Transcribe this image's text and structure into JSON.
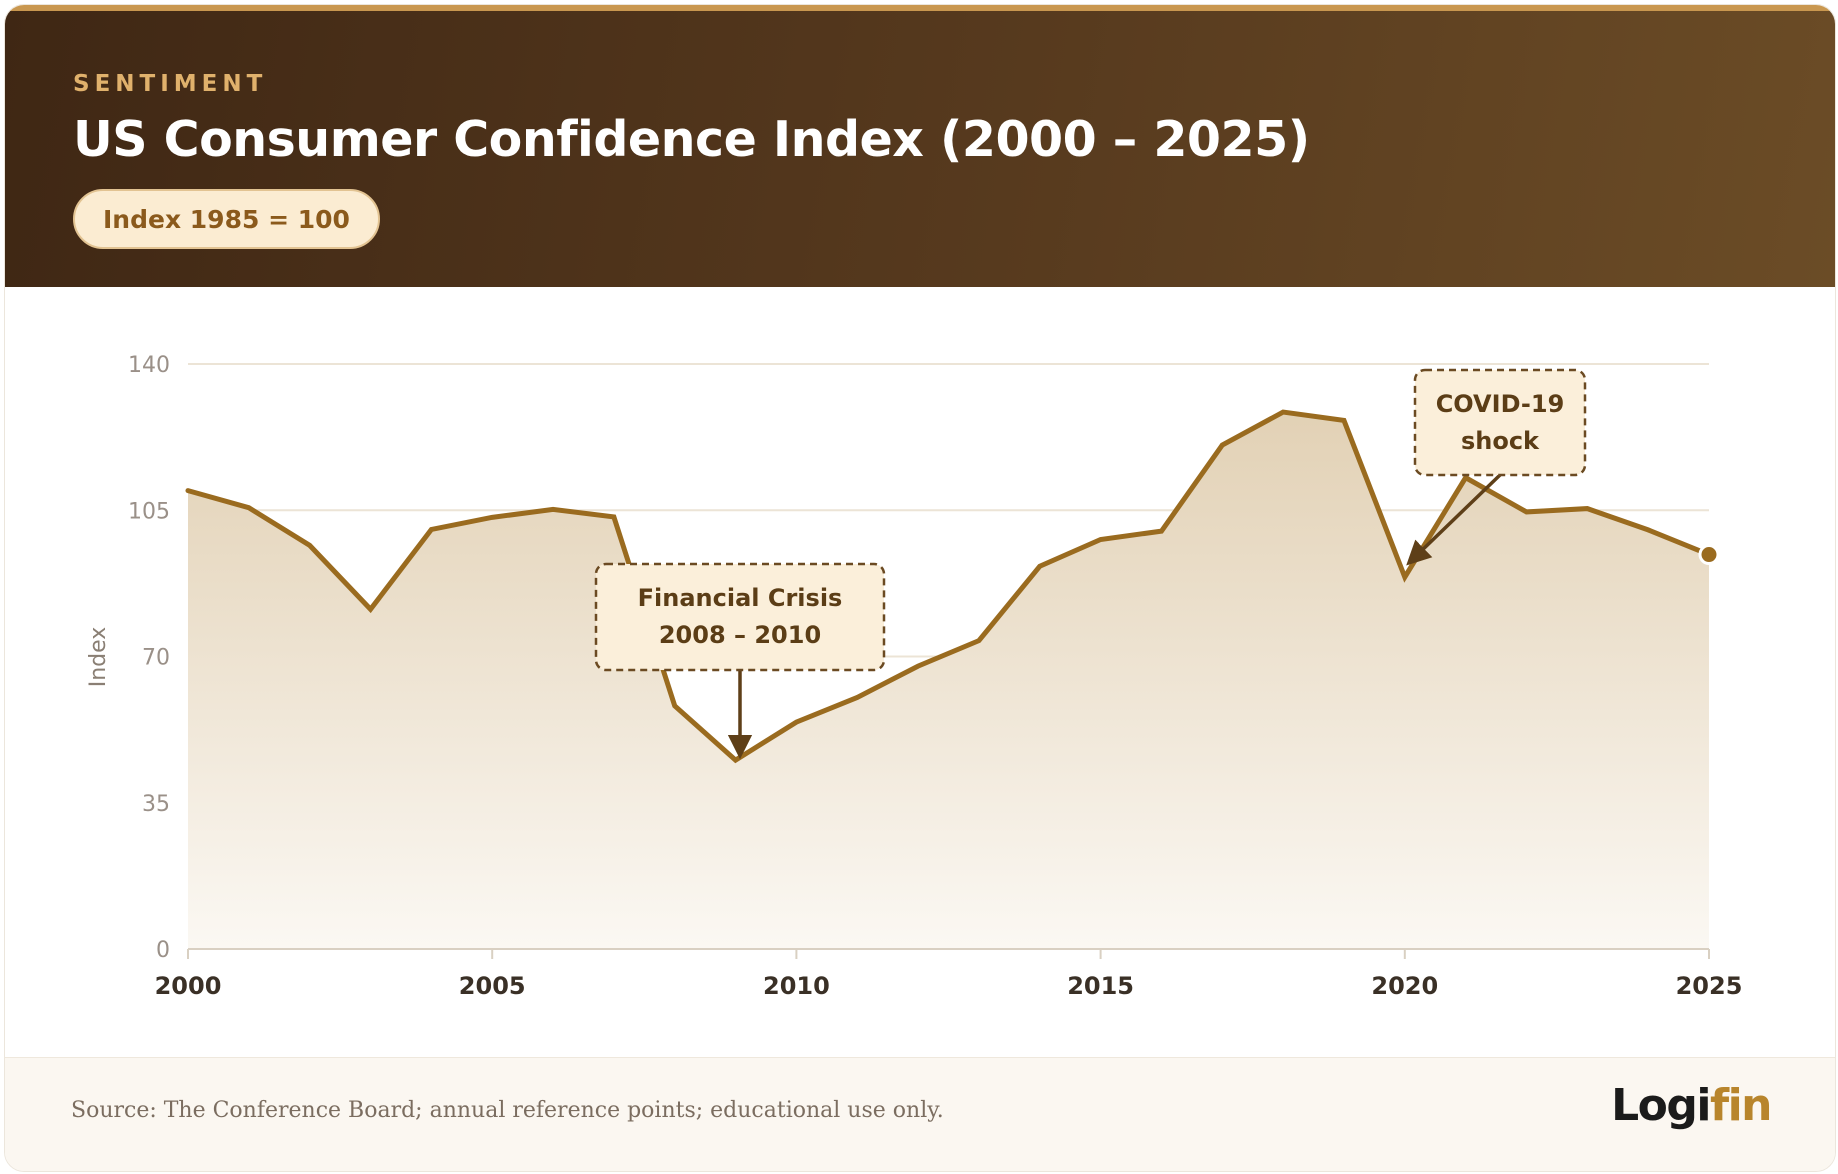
{
  "header": {
    "kicker": "SENTIMENT",
    "title": "US Consumer Confidence Index (2000 – 2025)",
    "badge": "Index 1985 = 100"
  },
  "footer": {
    "source": "Source: The Conference Board; annual reference points; educational use only.",
    "logo_part1": "Logi",
    "logo_part2": "fin"
  },
  "colors": {
    "line": "#9a6b1f",
    "area_top": "#e6d6bd",
    "grid": "#ece4d6",
    "header_bg": "#4a2f17",
    "accent": "#e0b16c"
  },
  "chart_data": {
    "type": "area",
    "title": "US Consumer Confidence Index (2000 – 2025)",
    "xlabel": "",
    "ylabel": "Index",
    "xlim": [
      2000,
      2025
    ],
    "ylim": [
      0,
      140
    ],
    "yticks": [
      0,
      35,
      70,
      105,
      140
    ],
    "xticks": [
      2000,
      2005,
      2010,
      2015,
      2020,
      2025
    ],
    "grid": true,
    "x": [
      2000,
      2001,
      2002,
      2003,
      2004,
      2005,
      2006,
      2007,
      2008,
      2009,
      2010,
      2011,
      2012,
      2013,
      2014,
      2015,
      2016,
      2017,
      2018,
      2019,
      2020,
      2021,
      2022,
      2023,
      2024,
      2025
    ],
    "values": [
      109.7,
      105.6,
      96.6,
      81.3,
      100.4,
      103.3,
      105.2,
      103.4,
      58.2,
      45.2,
      54.3,
      60.2,
      67.7,
      73.8,
      91.6,
      98.0,
      100.0,
      120.6,
      128.5,
      126.5,
      89.0,
      112.8,
      104.6,
      105.4,
      100.3,
      94.4
    ],
    "annotations": [
      {
        "line1": "Financial Crisis",
        "line2": "2008 – 2010",
        "x": 2009,
        "y": 45.2
      },
      {
        "line1": "COVID-19",
        "line2": "shock",
        "x": 2020,
        "y": 89.0
      }
    ]
  }
}
